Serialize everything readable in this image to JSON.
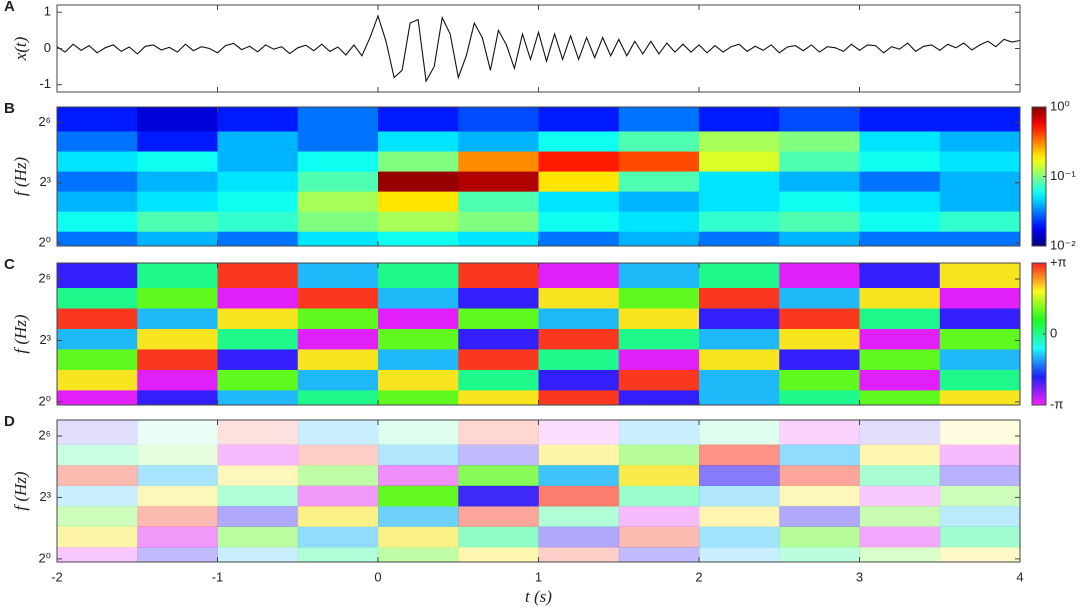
{
  "chart_data": [
    {
      "type": "line",
      "panel": "A",
      "ylabel": "x(t)",
      "color": "#111111",
      "xlim": [
        -2,
        4
      ],
      "xticks": [
        -2,
        -1,
        0,
        1,
        2,
        3,
        4
      ],
      "ylim": [
        -1.2,
        1.2
      ],
      "yticks": [
        -1,
        0,
        1
      ],
      "x": [
        -2,
        -1.95,
        -1.9,
        -1.85,
        -1.8,
        -1.75,
        -1.7,
        -1.65,
        -1.6,
        -1.55,
        -1.5,
        -1.45,
        -1.4,
        -1.35,
        -1.3,
        -1.25,
        -1.2,
        -1.15,
        -1.1,
        -1.05,
        -1,
        -0.95,
        -0.9,
        -0.85,
        -0.8,
        -0.75,
        -0.7,
        -0.65,
        -0.6,
        -0.55,
        -0.5,
        -0.45,
        -0.4,
        -0.35,
        -0.3,
        -0.25,
        -0.2,
        -0.15,
        -0.1,
        -0.05,
        0,
        0.05,
        0.1,
        0.15,
        0.2,
        0.25,
        0.3,
        0.35,
        0.4,
        0.45,
        0.5,
        0.55,
        0.6,
        0.65,
        0.7,
        0.75,
        0.8,
        0.85,
        0.9,
        0.95,
        1,
        1.05,
        1.1,
        1.15,
        1.2,
        1.25,
        1.3,
        1.35,
        1.4,
        1.45,
        1.5,
        1.55,
        1.6,
        1.65,
        1.7,
        1.75,
        1.8,
        1.85,
        1.9,
        1.95,
        2,
        2.05,
        2.1,
        2.15,
        2.2,
        2.25,
        2.3,
        2.35,
        2.4,
        2.45,
        2.5,
        2.55,
        2.6,
        2.65,
        2.7,
        2.75,
        2.8,
        2.85,
        2.9,
        2.95,
        3,
        3.05,
        3.1,
        3.15,
        3.2,
        3.25,
        3.3,
        3.35,
        3.4,
        3.45,
        3.5,
        3.55,
        3.6,
        3.65,
        3.7,
        3.75,
        3.8,
        3.85,
        3.9,
        3.95,
        4
      ],
      "values": [
        0.05,
        -0.1,
        0.12,
        -0.05,
        0.08,
        -0.12,
        0.02,
        0.1,
        -0.08,
        0.04,
        -0.15,
        0.06,
        0.1,
        -0.04,
        0.03,
        -0.1,
        0.12,
        -0.06,
        0.05,
        0.0,
        -0.12,
        0.08,
        0.14,
        -0.03,
        0.06,
        -0.09,
        0.1,
        -0.02,
        0.05,
        -0.14,
        0.02,
        0.09,
        -0.06,
        0.12,
        -0.08,
        0.04,
        -0.18,
        0.1,
        -0.2,
        0.3,
        0.9,
        0.2,
        -0.8,
        -0.6,
        0.7,
        0.8,
        -0.9,
        -0.5,
        0.85,
        0.4,
        -0.8,
        -0.2,
        0.7,
        0.3,
        -0.6,
        0.5,
        0.1,
        -0.55,
        0.4,
        -0.3,
        0.45,
        -0.35,
        0.4,
        -0.3,
        0.35,
        -0.3,
        0.3,
        -0.25,
        0.3,
        -0.2,
        0.25,
        -0.2,
        0.2,
        -0.15,
        0.2,
        -0.15,
        0.15,
        -0.1,
        0.12,
        -0.1,
        0.1,
        -0.12,
        0.08,
        -0.1,
        0.05,
        0.12,
        -0.08,
        0.06,
        -0.05,
        0.1,
        -0.12,
        0.04,
        0.08,
        -0.06,
        0.1,
        -0.1,
        0.05,
        0.02,
        -0.08,
        0.12,
        -0.05,
        0.1,
        0.08,
        -0.12,
        0.05,
        -0.02,
        0.15,
        -0.08,
        0.06,
        0.1,
        -0.05,
        0.12,
        0.02,
        0.15,
        -0.04,
        0.1,
        0.2,
        0.05,
        0.25,
        0.18,
        0.22
      ]
    },
    {
      "type": "heatmap",
      "colormap": "jet",
      "panel": "B",
      "ylabel": "f (Hz)",
      "log_y": true,
      "log_color": true,
      "xlim": [
        -2,
        4
      ],
      "xticks": [
        -2,
        -1,
        0,
        1,
        2,
        3,
        4
      ],
      "ylim": [
        0.9,
        110
      ],
      "yticks": [
        {
          "value": 1,
          "label": "2⁰"
        },
        {
          "value": 8,
          "label": "2³"
        },
        {
          "value": 64,
          "label": "2⁶"
        }
      ],
      "clim": [
        0.01,
        1
      ],
      "cticks": [
        {
          "value": 1,
          "label": "10⁰"
        },
        {
          "value": 0.1,
          "label": "10⁻¹"
        },
        {
          "value": 0.01,
          "label": "10⁻²"
        }
      ],
      "xbins": [
        -2,
        -1.5,
        -1,
        -0.5,
        0,
        0.5,
        1,
        1.5,
        2,
        2.5,
        3,
        3.5,
        4
      ],
      "ybins": [
        0.9,
        1.5,
        3,
        6,
        12,
        24,
        48,
        110
      ],
      "z": [
        [
          0.03,
          0.04,
          0.03,
          0.05,
          0.06,
          0.05,
          0.03,
          0.04,
          0.03,
          0.04,
          0.03,
          0.03
        ],
        [
          0.06,
          0.08,
          0.07,
          0.1,
          0.12,
          0.1,
          0.06,
          0.05,
          0.07,
          0.08,
          0.06,
          0.07
        ],
        [
          0.04,
          0.05,
          0.06,
          0.12,
          0.2,
          0.08,
          0.05,
          0.04,
          0.05,
          0.06,
          0.05,
          0.04
        ],
        [
          0.03,
          0.04,
          0.05,
          0.08,
          0.9,
          0.8,
          0.2,
          0.08,
          0.05,
          0.04,
          0.03,
          0.04
        ],
        [
          0.05,
          0.06,
          0.04,
          0.06,
          0.1,
          0.3,
          0.5,
          0.4,
          0.15,
          0.08,
          0.06,
          0.05
        ],
        [
          0.03,
          0.02,
          0.04,
          0.03,
          0.05,
          0.04,
          0.06,
          0.08,
          0.12,
          0.1,
          0.05,
          0.04
        ],
        [
          0.02,
          0.015,
          0.02,
          0.03,
          0.02,
          0.025,
          0.02,
          0.03,
          0.02,
          0.025,
          0.02,
          0.02
        ]
      ]
    },
    {
      "type": "heatmap",
      "colormap": "phase",
      "panel": "C",
      "ylabel": "f (Hz)",
      "log_y": true,
      "xlim": [
        -2,
        4
      ],
      "xticks": [
        -2,
        -1,
        0,
        1,
        2,
        3,
        4
      ],
      "ylim": [
        0.9,
        110
      ],
      "yticks": [
        {
          "value": 1,
          "label": "2⁰"
        },
        {
          "value": 8,
          "label": "2³"
        },
        {
          "value": 64,
          "label": "2⁶"
        }
      ],
      "clim": [
        -3.1416,
        3.1416
      ],
      "cticks": [
        {
          "value": 3.1416,
          "label": "+π"
        },
        0,
        {
          "value": -3.1416,
          "label": "-π"
        }
      ],
      "xbins": [
        -2,
        -1.5,
        -1,
        -0.5,
        0,
        0.5,
        1,
        1.5,
        2,
        2.5,
        3,
        3.5,
        4
      ],
      "ybins": [
        0.9,
        1.5,
        3,
        6,
        12,
        24,
        48,
        110
      ],
      "z": [
        [
          -3,
          -2,
          -1,
          0,
          1,
          2,
          3,
          -2,
          -1,
          0,
          1,
          2
        ],
        [
          2,
          -3,
          1,
          -1,
          2,
          0,
          -2,
          3,
          -1,
          1,
          -3,
          0
        ],
        [
          1,
          3,
          -2,
          2,
          -1,
          3,
          0,
          -3,
          2,
          -2,
          1,
          -1
        ],
        [
          -1,
          2,
          0,
          -3,
          1,
          -2,
          3,
          0,
          -1,
          2,
          -3,
          1
        ],
        [
          3,
          -1,
          2,
          1,
          -3,
          1,
          -1,
          2,
          -2,
          3,
          0,
          -2
        ],
        [
          0,
          1,
          -3,
          3,
          -1,
          -2,
          2,
          1,
          3,
          -1,
          2,
          -3
        ],
        [
          -2,
          0,
          3,
          -1,
          0,
          3,
          -3,
          -1,
          0,
          -3,
          -2,
          2
        ]
      ]
    },
    {
      "type": "phase-magnitude",
      "panel": "D",
      "ylabel": "f (Hz)",
      "xlabel": "t (s)",
      "log_y": true,
      "xlim": [
        -2,
        4
      ],
      "xticks": [
        -2,
        -1,
        0,
        1,
        2,
        3,
        4
      ],
      "ylim": [
        0.9,
        110
      ],
      "yticks": [
        {
          "value": 1,
          "label": "2⁰"
        },
        {
          "value": 8,
          "label": "2³"
        },
        {
          "value": 64,
          "label": "2⁶"
        }
      ]
    }
  ]
}
